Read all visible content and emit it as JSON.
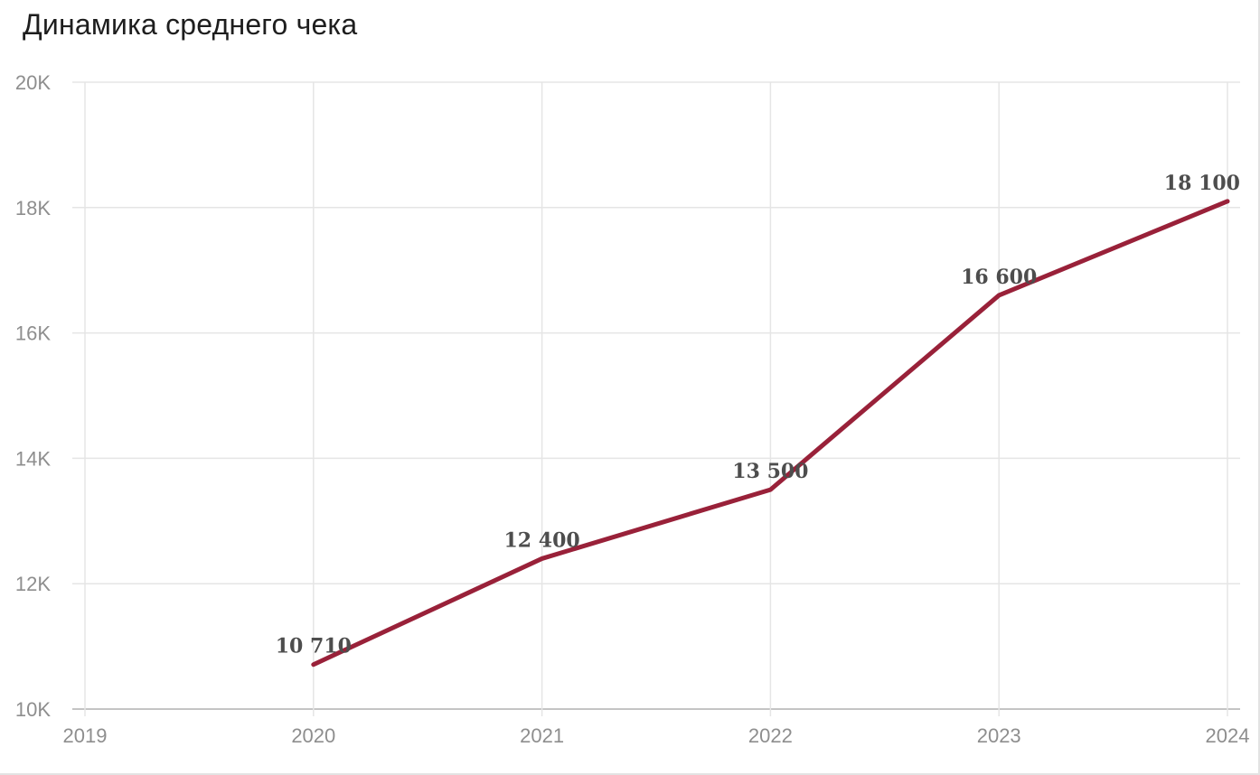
{
  "page": {
    "title": "Динамика среднего чека"
  },
  "chart_data": {
    "type": "line",
    "title": "Динамика среднего чека",
    "x": [
      2020,
      2021,
      2022,
      2023,
      2024
    ],
    "values": [
      10710,
      12400,
      13500,
      16600,
      18100
    ],
    "point_labels": [
      "10 710",
      "12 400",
      "13 500",
      "16 600",
      "18 100"
    ],
    "x_axis_ticks": [
      2019,
      2020,
      2021,
      2022,
      2023,
      2024
    ],
    "y_axis_ticks": [
      "10K",
      "12K",
      "14K",
      "16K",
      "18K",
      "20K"
    ],
    "y_axis_tick_values": [
      10000,
      12000,
      14000,
      16000,
      18000,
      20000
    ],
    "x_range": [
      2019,
      2024
    ],
    "ylim": [
      10000,
      20000
    ],
    "grid": true,
    "legend_position": "none",
    "line_color": "#992139",
    "line_width": 5,
    "point_label_color": "#4d4d4d",
    "axis_text_color": "#8e8e8e",
    "grid_color": "#e5e5e5",
    "axis_line_color": "#b0b0b0"
  }
}
